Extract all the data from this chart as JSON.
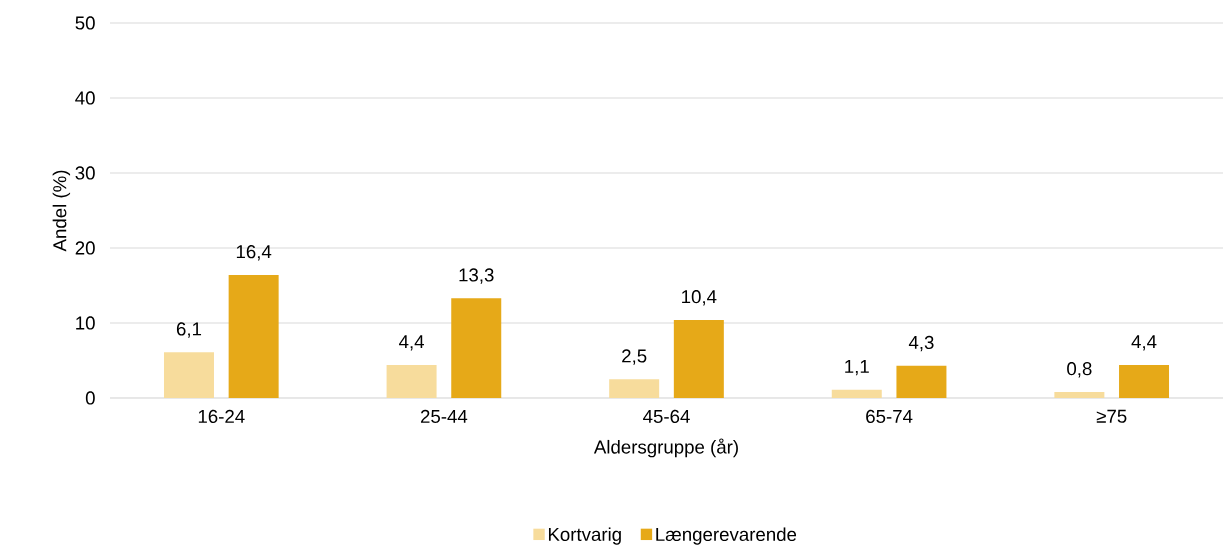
{
  "chart_data": {
    "type": "bar",
    "xlabel": "Aldersgruppe (år)",
    "ylabel": "Andel (%)",
    "categories": [
      "16-24",
      "25-44",
      "45-64",
      "65-74",
      "≥75"
    ],
    "series": [
      {
        "name": "Kortvarig",
        "color": "#f7dc9c",
        "values": [
          6.1,
          4.4,
          2.5,
          1.1,
          0.8
        ],
        "value_labels": [
          "6,1",
          "4,4",
          "2,5",
          "1,1",
          "0,8"
        ]
      },
      {
        "name": "Længerevarende",
        "color": "#e6a918",
        "values": [
          16.4,
          13.3,
          10.4,
          4.3,
          4.4
        ],
        "value_labels": [
          "16,4",
          "13,3",
          "10,4",
          "4,3",
          "4,4"
        ]
      }
    ],
    "ylim": [
      0,
      50
    ],
    "yticks": [
      0,
      10,
      20,
      30,
      40,
      50
    ],
    "grid": "y",
    "legend": "bottom"
  }
}
